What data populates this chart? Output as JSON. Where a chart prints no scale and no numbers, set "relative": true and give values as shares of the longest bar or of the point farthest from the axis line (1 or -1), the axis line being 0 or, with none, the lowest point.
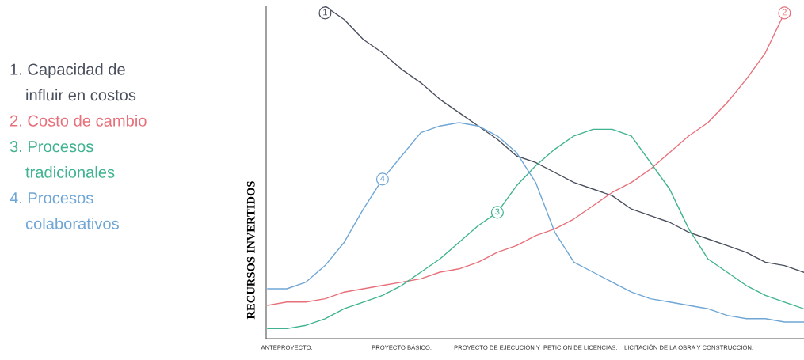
{
  "chart_data": {
    "type": "line",
    "relative": true,
    "ylabel": "RECURSOS INVERTIDOS",
    "legend": "left",
    "marker": "none",
    "line_style": "solid",
    "categories": [
      null,
      "ANTEPROYECTO.",
      null,
      null,
      null,
      null,
      null,
      "PROYECTO BÁSICO.",
      null,
      null,
      null,
      null,
      null,
      null,
      "PROYECTO DE EJECUCIÓN Y  PETICION DE LICENCIAS.",
      null,
      null,
      null,
      null,
      null,
      null,
      null,
      "LICITACIÓN DE LA OBRA Y CONSTRUCCIÓN.",
      null,
      null,
      null,
      null,
      null,
      null
    ],
    "series": [
      {
        "name": "1. Capacidad de\ninfluir en costos",
        "color": "#4a4f5e",
        "values": [
          null,
          null,
          null,
          1.0,
          0.96,
          0.9,
          0.86,
          0.81,
          0.77,
          0.72,
          0.68,
          0.64,
          0.6,
          0.55,
          0.53,
          0.5,
          0.47,
          0.45,
          0.43,
          0.39,
          0.37,
          0.35,
          0.32,
          0.3,
          0.28,
          0.26,
          0.23,
          0.22,
          0.2
        ]
      },
      {
        "name": "2. Costo de cambio",
        "color": "#e8707a",
        "values": [
          0.1,
          0.11,
          0.11,
          0.12,
          0.14,
          0.15,
          0.16,
          0.17,
          0.18,
          0.2,
          0.21,
          0.23,
          0.26,
          0.28,
          0.31,
          0.33,
          0.36,
          0.4,
          0.44,
          0.47,
          0.51,
          0.56,
          0.61,
          0.65,
          0.71,
          0.78,
          0.86,
          0.98,
          null
        ]
      },
      {
        "name": "3. Procesos\ntradicionales",
        "color": "#3fb38f",
        "values": [
          0.03,
          0.03,
          0.04,
          0.06,
          0.09,
          0.11,
          0.13,
          0.16,
          0.2,
          0.24,
          0.29,
          0.34,
          0.38,
          0.46,
          0.52,
          0.57,
          0.61,
          0.63,
          0.63,
          0.61,
          0.53,
          0.45,
          0.33,
          0.24,
          0.2,
          0.16,
          0.13,
          0.11,
          0.09
        ]
      },
      {
        "name": "4. Procesos\ncolaborativos",
        "color": "#6fa6d6",
        "values": [
          0.15,
          0.15,
          0.17,
          0.22,
          0.29,
          0.39,
          0.48,
          0.55,
          0.62,
          0.64,
          0.65,
          0.64,
          0.61,
          0.56,
          0.47,
          0.32,
          0.23,
          0.2,
          0.17,
          0.14,
          0.12,
          0.11,
          0.1,
          0.09,
          0.07,
          0.06,
          0.06,
          0.05,
          0.05
        ]
      }
    ],
    "annotations": [
      {
        "text": "1",
        "y": 0.98
      },
      {
        "text": "2",
        "y": 0.98
      },
      {
        "text": "3",
        "y": 0.38
      },
      {
        "text": "4",
        "y": 0.48
      }
    ]
  }
}
